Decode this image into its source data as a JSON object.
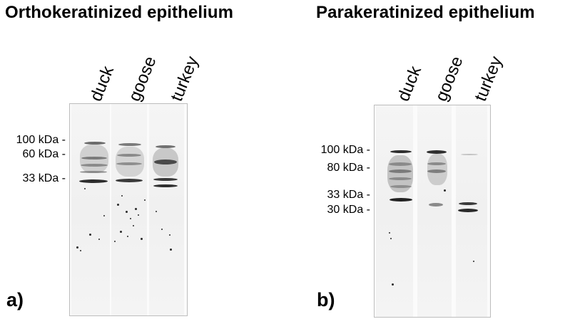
{
  "panel_a": {
    "title": "Orthokeratinized epithelium",
    "lanes": [
      "duck",
      "goose",
      "turkey"
    ],
    "markers": [
      "100 kDa -",
      "60 kDa -",
      "33 kDa -"
    ],
    "label": "a)"
  },
  "panel_b": {
    "title": "Parakeratinized epithelium",
    "lanes": [
      "duck",
      "goose",
      "turkey"
    ],
    "markers": [
      "100 kDa -",
      "80 kDa -",
      "33 kDa -",
      "30 kDa -"
    ],
    "label": "b)"
  }
}
